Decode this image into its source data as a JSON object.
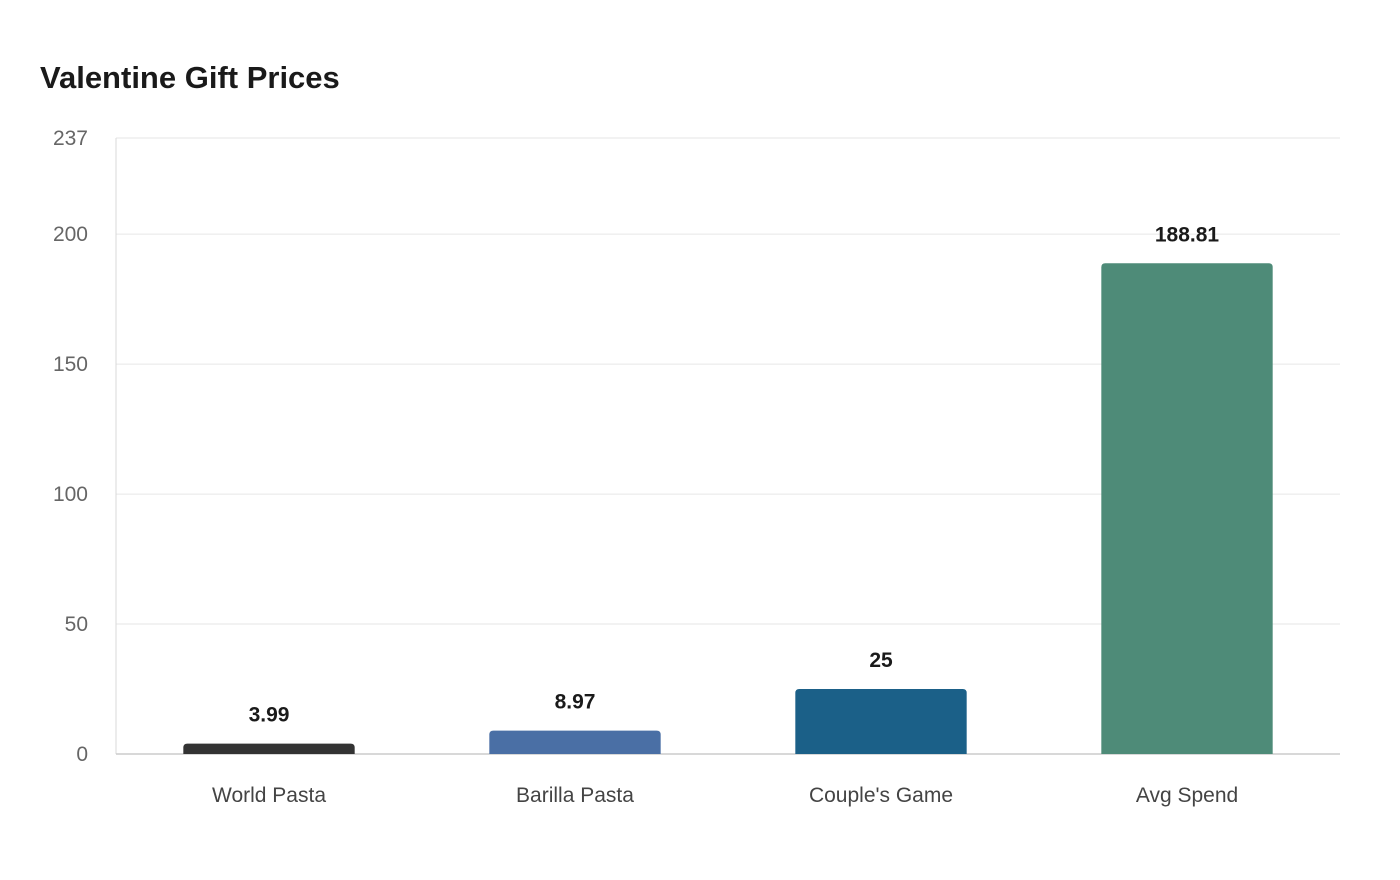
{
  "chart_data": {
    "type": "bar",
    "title": "Valentine Gift Prices",
    "xlabel": "",
    "ylabel": "",
    "categories": [
      "World Pasta",
      "Barilla Pasta",
      "Couple's Game",
      "Avg Spend"
    ],
    "values": [
      3.99,
      8.97,
      25,
      188.81
    ],
    "value_labels": [
      "3.99",
      "8.97",
      "25",
      "188.81"
    ],
    "colors": [
      "#333333",
      "#4a6fa5",
      "#1b6088",
      "#4e8b78"
    ],
    "ylim": [
      0,
      237
    ],
    "yticks": [
      0,
      50,
      100,
      150,
      200,
      237
    ],
    "grid": true,
    "legend": "none"
  }
}
